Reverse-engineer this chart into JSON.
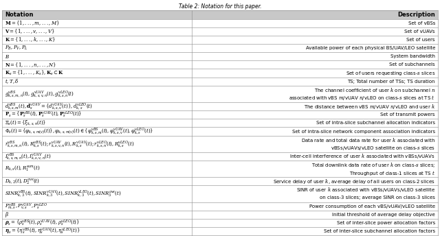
{
  "title": "Table 2: Notation for this paper.",
  "header": [
    "Notation",
    "Description"
  ],
  "rows": [
    [
      "$\\mathbf{M}=\\{1,...,m,...,M\\}$",
      "Set of vBSs"
    ],
    [
      "$\\mathbf{V}=\\{1,...,v,...,V\\}$",
      "Set of vUAVs"
    ],
    [
      "$\\mathbf{K}=\\{1,...,k,...,K\\}$",
      "Set of users"
    ],
    [
      "$P_B, P_V, P_L$",
      "Available power of each physical BS/UAV/LEO satellite"
    ],
    [
      "$B$",
      "System bandwidth"
    ],
    [
      "$\\mathbf{N}=\\{1,...,n,...,N\\}$",
      "Set of subchannels"
    ],
    [
      "$\\mathbf{K}_s=\\{1,...,K_s\\}, \\mathbf{K}_s\\subset\\mathbf{K}$",
      "Set of users requesting class-$s$ slices"
    ],
    [
      "$t, T, \\delta$",
      "TS; Total number of TSs; TS duration"
    ],
    [
      "$g^{vBS}_{k,s,m,n}(t), g^{vUAV}_{k,s,v,n}(t), g^{vLEO}_{k,s,n}(t)$",
      "The channel coefficient of user $k$ on subchannel $n$\nassociated with vBS $m$/vUAV $n$/vLEO on class-$s$ slices at TS $t$"
    ],
    [
      "$d^{vBS}_{k,s,m}(t), \\mathbf{d}^{vUAV}_s=\\{d^{vUAV}_{k,s,v}(t)\\}, d^{vLEO}_{k,s}(t)$",
      "The distance between vBS $m$/vUAV $n$/vLEO and user $k$"
    ],
    [
      "$\\mathbf{P}_s=\\{\\mathbf{P}^{vBS}_s(t), \\mathbf{P}^{vUAV}_s(t), \\mathbf{P}^{vLEO}_s(t)\\}$",
      "Set of transmit powers"
    ],
    [
      "$\\Xi_s(t)=\\{\\xi_{k,s,n}(t)\\}$",
      "Set of intra-slice subchannel allocation indicators"
    ],
    [
      "$\\Phi_s(t)=\\{\\varphi_{k,s,m(v)}(t)\\}, \\varphi_{k,s,m(v)}(t)\\in\\{\\varphi^{vBS}_{k,s,m}(t), \\varphi^{vUAV}_{k,s,v}(t), \\varphi^{vLEO}_{k,s}(t)\\}$",
      "Set of intra-slice network component association indicators"
    ],
    [
      "$r^{vBS}_{k,s,m,n}(t), R^{vBS}_{k,s}(t); r^{vUAV}_{k,s,v,n}(t), R^{vUAV}_{k,s}(t); r^{vLEO}_{k,s,n}(t), R^{vLEO}_{k,s}(t)$",
      "Data rate and total data rate for user $k$ associated with\nvBSs/vUAVs/vLEO satellite on class-$s$ slices"
    ],
    [
      "$I^{vBS}_{k,s,m,n}(t), I^{vUAV}_{k,s,v,n}(t)$",
      "Inter-cell interference of user $k$ associated with vBSs/vUAVs"
    ],
    [
      "$R_{k,s}(t), R^{sum}_1(t)$",
      "Total downlink data rate of user $k$ on class-$s$ slices;\nThroughput of class-1 slices at TS $t$"
    ],
    [
      "$D_{k,2}(t), D^{ave}_2(t)$",
      "Service delay of user $k$, average delay of all users on class-2 slices"
    ],
    [
      "$SINR^{vBS}_{k,3}(t), SINR^{vUAV}_{k,3}(t), SINR^{vLEO}_{k,3}(t), SINR^{ave}_3(t)$",
      "SINR of user $k$ associated with vBSs/vUAVs/vLEO satellite\non class-3 slices; average SINR on class-3 slices"
    ],
    [
      "$P^{vBS}_{m,s}, P^{vUAV}_{v,s}, P^{vLEO}_s$",
      "Power consumption of each vBS/vUAV/vLEO satellite"
    ],
    [
      "$\\beta$",
      "Initial threshold of average delay objective"
    ],
    [
      "$\\boldsymbol{\\rho}_s=\\{\\rho^{vBS}_s(t), \\rho^{vUAV}_s(t), \\rho^{vLEO}_s(t)\\}$",
      "Set of inter-slice power allocation factors"
    ],
    [
      "$\\boldsymbol{\\eta}_s=\\{\\eta^{vBS}_s(t), \\eta^{vUAV}_s(t), \\eta^{vLEO}_s(t)\\}$",
      "Set of inter-slice subchannel allocation factors"
    ]
  ],
  "col_split": 0.435,
  "bg_color": "#ffffff",
  "header_bg": "#c8c8c8",
  "row_bg": "#ffffff",
  "line_color": "#888888",
  "outer_color": "#555555",
  "text_color": "#000000",
  "font_size": 5.0,
  "header_font_size": 6.0,
  "title_font_size": 5.5
}
